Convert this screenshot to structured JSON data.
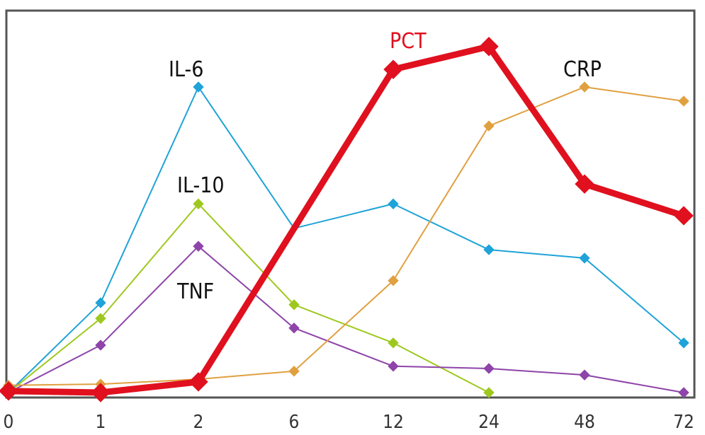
{
  "chart_data": {
    "type": "line",
    "title": "",
    "xlabel": "",
    "ylabel": "",
    "categories": [
      "0",
      "1",
      "2",
      "6",
      "12",
      "24",
      "48",
      "72"
    ],
    "ylim": [
      0,
      100
    ],
    "grid": false,
    "legend": "inline labels",
    "series": [
      {
        "name": "IL-6",
        "color": "#1fa3d8",
        "width": 2,
        "values": [
          0,
          23.5,
          80,
          43,
          49.4,
          37.4,
          35.2,
          13
        ],
        "no_marker_at": [
          "6"
        ]
      },
      {
        "name": "IL-10",
        "color": "#9ec81f",
        "width": 2,
        "values": [
          0,
          19.4,
          49.4,
          23,
          13,
          0,
          null,
          null
        ],
        "no_marker_at": []
      },
      {
        "name": "TNF",
        "color": "#8e44a8",
        "width": 2,
        "values": [
          0,
          12.4,
          38.3,
          16.9,
          6.9,
          6.3,
          4.6,
          0
        ],
        "no_marker_at": []
      },
      {
        "name": "CRP",
        "color": "#e0a040",
        "width": 2,
        "values": [
          1.9,
          2.2,
          3.5,
          5.6,
          29.3,
          69.8,
          80,
          76.3
        ],
        "no_marker_at": []
      },
      {
        "name": "PCT",
        "color": "#e0101e",
        "width": 9,
        "values": [
          0.4,
          0,
          2.8,
          null,
          84.6,
          90.6,
          54.6,
          46.3
        ],
        "no_marker_at": []
      }
    ],
    "labels": [
      {
        "text": "IL-6",
        "color": "#111111"
      },
      {
        "text": "IL-10",
        "color": "#111111"
      },
      {
        "text": "TNF",
        "color": "#111111"
      },
      {
        "text": "CRP",
        "color": "#111111"
      },
      {
        "text": "PCT",
        "color": "#e0101e"
      }
    ]
  }
}
